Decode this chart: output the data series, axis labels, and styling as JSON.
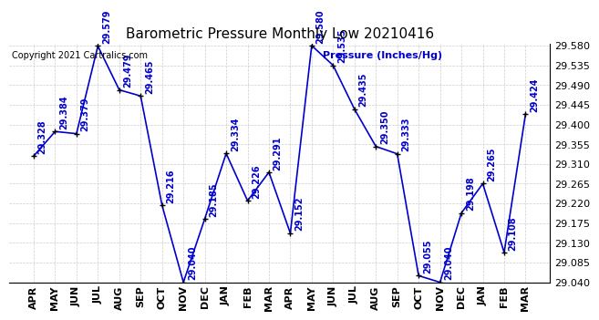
{
  "title": "Barometric Pressure Monthly Low 20210416",
  "copyright": "Copyright 2021 Cartralics.com",
  "ylabel": "Pressure (Inches/Hg)",
  "months": [
    "APR",
    "MAY",
    "JUN",
    "JUL",
    "AUG",
    "SEP",
    "OCT",
    "NOV",
    "DEC",
    "JAN",
    "FEB",
    "MAR",
    "APR",
    "MAY",
    "JUN",
    "JUL",
    "AUG",
    "SEP",
    "OCT",
    "NOV",
    "DEC",
    "JAN",
    "FEB",
    "MAR"
  ],
  "values": [
    29.328,
    29.384,
    29.379,
    29.579,
    29.479,
    29.465,
    29.216,
    29.04,
    29.185,
    29.334,
    29.226,
    29.291,
    29.152,
    29.58,
    29.535,
    29.435,
    29.35,
    29.333,
    29.055,
    29.04,
    29.198,
    29.265,
    29.108,
    29.424
  ],
  "ylim_min": 29.04,
  "ylim_max": 29.58,
  "yticks": [
    29.04,
    29.085,
    29.13,
    29.175,
    29.22,
    29.265,
    29.31,
    29.355,
    29.4,
    29.445,
    29.49,
    29.535,
    29.58
  ],
  "line_color": "#0000cc",
  "marker_color": "#000000",
  "label_color": "#0000cc",
  "title_color": "#000000",
  "copyright_color": "#000000",
  "ylabel_color": "#0000cc",
  "bg_color": "#ffffff",
  "grid_color": "#cccccc",
  "label_fontsize": 7.0,
  "tick_fontsize": 8.0,
  "title_fontsize": 11
}
